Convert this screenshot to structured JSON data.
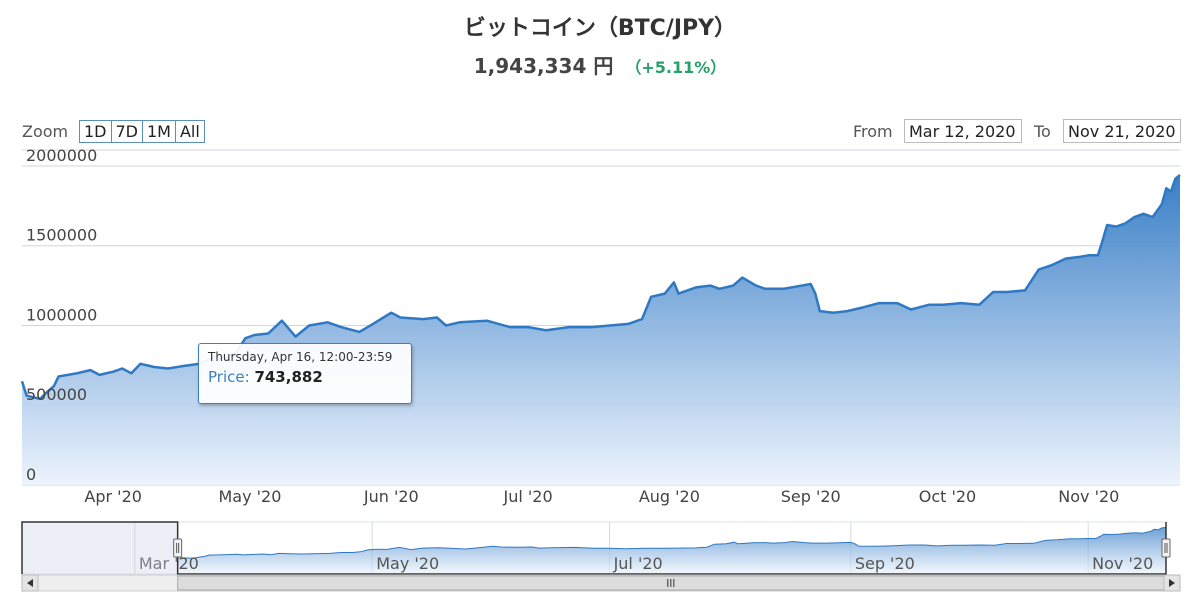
{
  "header": {
    "title": "ビットコイン（BTC/JPY）",
    "price": "1,943,334 円",
    "change": "（+5.11%）"
  },
  "controls": {
    "zoom_label": "Zoom",
    "zoom_buttons": [
      "1D",
      "7D",
      "1M",
      "All"
    ],
    "from_label": "From",
    "from_value": "Mar 12, 2020",
    "to_label": "To",
    "to_value": "Nov 21, 2020"
  },
  "tooltip": {
    "date": "Thursday, Apr 16, 12:00-23:59",
    "series_label": "Price:",
    "value": "743,882"
  },
  "colors": {
    "line": "#2f78c4",
    "fill_top": "#2f78c4",
    "fill_bottom": "#eaf2fc",
    "change": "#27a06b"
  },
  "chart_data": {
    "type": "area",
    "x_type": "datetime",
    "x_range": [
      "2020-03-12",
      "2020-11-21"
    ],
    "ylim": [
      0,
      2100000
    ],
    "y_ticks": [
      0,
      500000,
      1000000,
      1500000,
      2000000
    ],
    "y_tick_labels": [
      "0",
      "500000",
      "1000000",
      "1500000",
      "2000000"
    ],
    "x_ticks": [
      "2020-04-01",
      "2020-05-01",
      "2020-06-01",
      "2020-07-01",
      "2020-08-01",
      "2020-09-01",
      "2020-10-01",
      "2020-11-01"
    ],
    "x_tick_labels": [
      "Apr '20",
      "May '20",
      "Jun '20",
      "Jul '20",
      "Aug '20",
      "Sep '20",
      "Oct '20",
      "Nov '20"
    ],
    "grid": true,
    "legend": "none",
    "series": [
      {
        "points": [
          [
            "2020-03-12",
            650000
          ],
          [
            "2020-03-13",
            560000
          ],
          [
            "2020-03-16",
            540000
          ],
          [
            "2020-03-17",
            570000
          ],
          [
            "2020-03-19",
            620000
          ],
          [
            "2020-03-20",
            680000
          ],
          [
            "2020-03-24",
            700000
          ],
          [
            "2020-03-27",
            720000
          ],
          [
            "2020-03-29",
            690000
          ],
          [
            "2020-04-01",
            710000
          ],
          [
            "2020-04-03",
            730000
          ],
          [
            "2020-04-05",
            700000
          ],
          [
            "2020-04-07",
            760000
          ],
          [
            "2020-04-10",
            740000
          ],
          [
            "2020-04-13",
            730000
          ],
          [
            "2020-04-16",
            743882
          ],
          [
            "2020-04-20",
            760000
          ],
          [
            "2020-04-23",
            800000
          ],
          [
            "2020-04-26",
            800000
          ],
          [
            "2020-04-28",
            830000
          ],
          [
            "2020-04-30",
            920000
          ],
          [
            "2020-05-02",
            940000
          ],
          [
            "2020-05-05",
            950000
          ],
          [
            "2020-05-08",
            1030000
          ],
          [
            "2020-05-11",
            930000
          ],
          [
            "2020-05-14",
            1000000
          ],
          [
            "2020-05-18",
            1020000
          ],
          [
            "2020-05-21",
            990000
          ],
          [
            "2020-05-25",
            960000
          ],
          [
            "2020-05-28",
            1010000
          ],
          [
            "2020-06-01",
            1080000
          ],
          [
            "2020-06-03",
            1050000
          ],
          [
            "2020-06-08",
            1040000
          ],
          [
            "2020-06-11",
            1050000
          ],
          [
            "2020-06-13",
            1000000
          ],
          [
            "2020-06-16",
            1020000
          ],
          [
            "2020-06-22",
            1030000
          ],
          [
            "2020-06-27",
            990000
          ],
          [
            "2020-07-01",
            990000
          ],
          [
            "2020-07-05",
            970000
          ],
          [
            "2020-07-10",
            990000
          ],
          [
            "2020-07-15",
            990000
          ],
          [
            "2020-07-19",
            1000000
          ],
          [
            "2020-07-23",
            1010000
          ],
          [
            "2020-07-26",
            1040000
          ],
          [
            "2020-07-28",
            1180000
          ],
          [
            "2020-07-31",
            1200000
          ],
          [
            "2020-08-02",
            1270000
          ],
          [
            "2020-08-03",
            1200000
          ],
          [
            "2020-08-07",
            1240000
          ],
          [
            "2020-08-10",
            1250000
          ],
          [
            "2020-08-12",
            1230000
          ],
          [
            "2020-08-15",
            1250000
          ],
          [
            "2020-08-17",
            1300000
          ],
          [
            "2020-08-20",
            1250000
          ],
          [
            "2020-08-22",
            1230000
          ],
          [
            "2020-08-26",
            1230000
          ],
          [
            "2020-08-30",
            1250000
          ],
          [
            "2020-09-01",
            1260000
          ],
          [
            "2020-09-02",
            1200000
          ],
          [
            "2020-09-03",
            1090000
          ],
          [
            "2020-09-06",
            1080000
          ],
          [
            "2020-09-09",
            1090000
          ],
          [
            "2020-09-12",
            1110000
          ],
          [
            "2020-09-16",
            1140000
          ],
          [
            "2020-09-20",
            1140000
          ],
          [
            "2020-09-23",
            1100000
          ],
          [
            "2020-09-27",
            1130000
          ],
          [
            "2020-09-30",
            1130000
          ],
          [
            "2020-10-04",
            1140000
          ],
          [
            "2020-10-08",
            1130000
          ],
          [
            "2020-10-11",
            1210000
          ],
          [
            "2020-10-14",
            1210000
          ],
          [
            "2020-10-18",
            1220000
          ],
          [
            "2020-10-21",
            1350000
          ],
          [
            "2020-10-24",
            1380000
          ],
          [
            "2020-10-27",
            1420000
          ],
          [
            "2020-10-30",
            1430000
          ],
          [
            "2020-11-01",
            1440000
          ],
          [
            "2020-11-03",
            1440000
          ],
          [
            "2020-11-04",
            1530000
          ],
          [
            "2020-11-05",
            1630000
          ],
          [
            "2020-11-07",
            1620000
          ],
          [
            "2020-11-09",
            1640000
          ],
          [
            "2020-11-11",
            1680000
          ],
          [
            "2020-11-13",
            1700000
          ],
          [
            "2020-11-15",
            1680000
          ],
          [
            "2020-11-17",
            1760000
          ],
          [
            "2020-11-18",
            1860000
          ],
          [
            "2020-11-19",
            1840000
          ],
          [
            "2020-11-20",
            1920000
          ],
          [
            "2020-11-21",
            1943334
          ]
        ]
      }
    ],
    "navigator": {
      "x_range": [
        "2020-02-01",
        "2020-11-21"
      ],
      "selected_range": [
        "2020-03-12",
        "2020-11-21"
      ],
      "tick_labels": [
        "Mar '20",
        "May '20",
        "Jul '20",
        "Sep '20",
        "Nov '20"
      ],
      "ticks": [
        "2020-03-01",
        "2020-05-01",
        "2020-07-01",
        "2020-09-01",
        "2020-11-01"
      ]
    }
  }
}
